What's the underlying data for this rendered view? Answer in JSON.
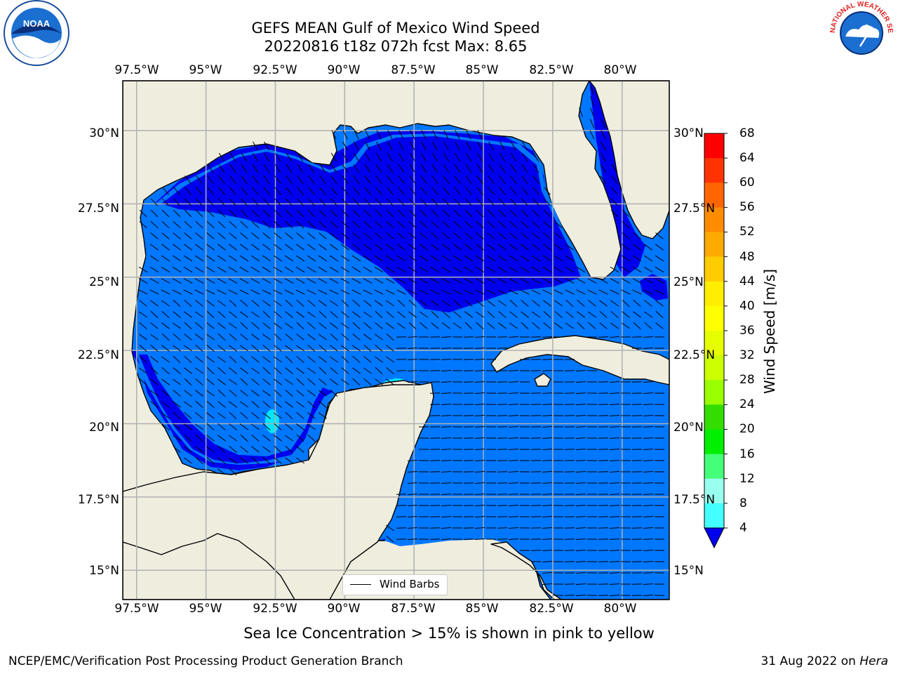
{
  "header": {
    "title_line1": "GEFS MEAN Gulf of Mexico Wind Speed",
    "title_line2": "20220816 t18z 072h fcst   Max: 8.65"
  },
  "logos": {
    "left_name": "noaa-logo",
    "left_text": "NOAA",
    "right_name": "nws-logo",
    "right_text": "NATIONAL WEATHER SERVICE"
  },
  "map": {
    "lon_labels": [
      "97.5°W",
      "95°W",
      "92.5°W",
      "90°W",
      "87.5°W",
      "85°W",
      "82.5°W",
      "80°W"
    ],
    "lat_labels": [
      "30°N",
      "27.5°N",
      "25°N",
      "22.5°N",
      "20°N",
      "17.5°N",
      "15°N"
    ],
    "lon_range": [
      -98,
      -78.3
    ],
    "lat_range": [
      14,
      31.7
    ],
    "colors": {
      "land": "#efedde",
      "wind_4_8": "#0077ff",
      "wind_below_4": "#0000ee",
      "wind_8_12": "#00e5ff",
      "coast": "#000000",
      "grid": "#b0b0b0"
    },
    "legend_label": "Wind Barbs"
  },
  "colorbar": {
    "title": "Wind Speed [m/s]",
    "ticks": [
      "68",
      "64",
      "60",
      "56",
      "52",
      "48",
      "44",
      "40",
      "36",
      "32",
      "28",
      "24",
      "20",
      "16",
      "12",
      "8",
      "4"
    ],
    "colors": [
      "#ff0000",
      "#ff3300",
      "#ff6600",
      "#ff8c00",
      "#ffaa00",
      "#ffcc00",
      "#ffee00",
      "#ffff00",
      "#e6ff00",
      "#ccff00",
      "#99ff00",
      "#33dd00",
      "#00ee00",
      "#44ff77",
      "#99ffee",
      "#44ffff",
      "#00ddff",
      "#0077ff"
    ],
    "under_color": "#0000ee"
  },
  "footer": {
    "subtitle": "Sea Ice Concentration > 15% is shown in pink to yellow",
    "credit": "NCEP/EMC/Verification Post Processing Product Generation Branch",
    "date_prefix": "31 Aug 2022 on ",
    "machine": "Hera"
  }
}
